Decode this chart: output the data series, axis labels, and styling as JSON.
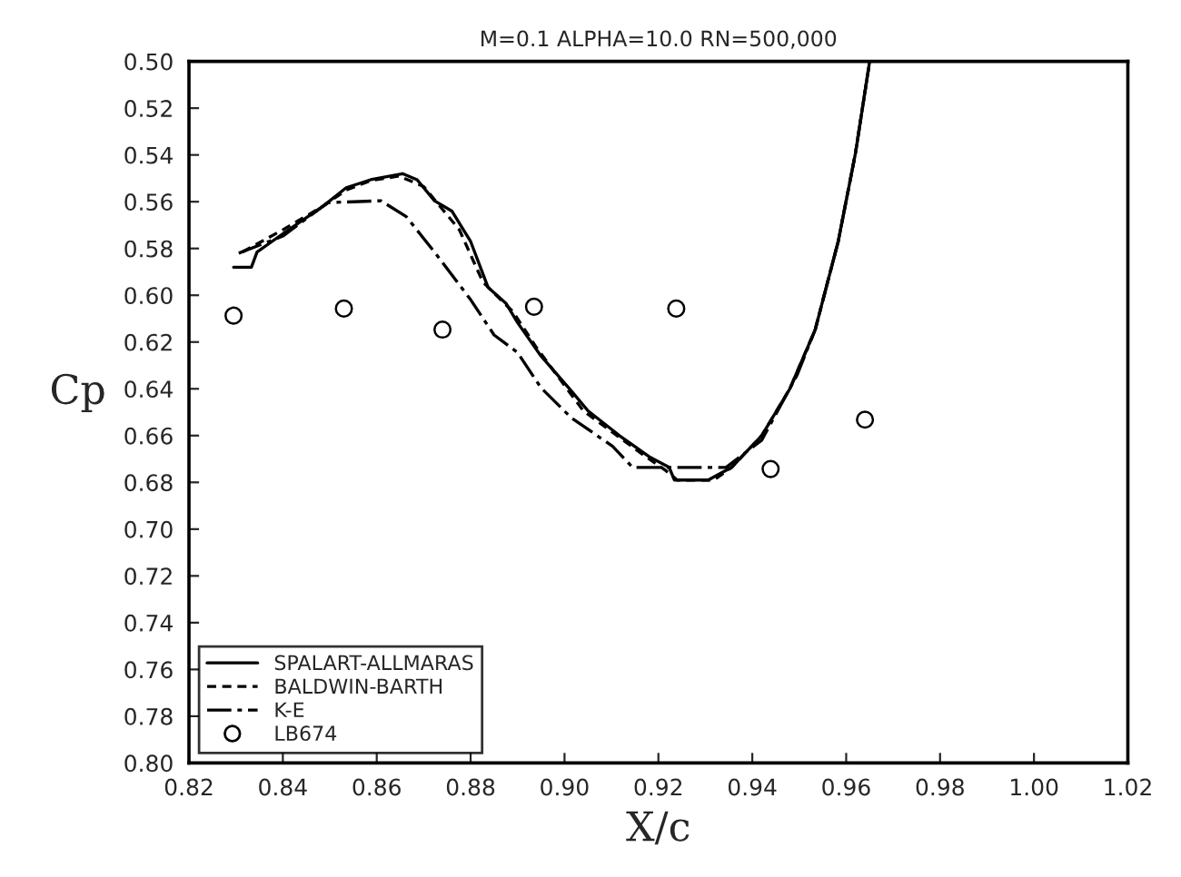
{
  "chart_data": {
    "type": "line",
    "title": "M=0.1 ALPHA=10.0 RN=500,000",
    "xlabel": "X/c",
    "ylabel": "Cp",
    "xlim": [
      0.82,
      1.02
    ],
    "ylim": [
      0.8,
      0.5
    ],
    "xticks": [
      0.82,
      0.84,
      0.86,
      0.88,
      {
        "value": 0.9,
        "label": "0.90"
      },
      0.92,
      0.94,
      0.96,
      0.98,
      {
        "value": 1.0,
        "label": "1.00"
      },
      1.02
    ],
    "yticks": [
      {
        "value": 0.5,
        "label": "0.50"
      },
      0.52,
      0.54,
      0.56,
      0.58,
      {
        "value": 0.6,
        "label": "0.60"
      },
      0.62,
      0.64,
      0.66,
      0.68,
      {
        "value": 0.7,
        "label": "0.70"
      },
      0.72,
      0.74,
      0.76,
      0.78,
      {
        "value": 0.8,
        "label": "0.80"
      }
    ],
    "grid": false,
    "legend": "bottom left",
    "series": [
      {
        "name": "SPALART-ALLMARAS",
        "line_style": "solid",
        "color": "#000000",
        "x": [
          0.8295,
          0.8333,
          0.8345,
          0.8398,
          0.8485,
          0.8535,
          0.8587,
          0.8655,
          0.8686,
          0.8723,
          0.876,
          0.88,
          0.8837,
          0.8875,
          0.89,
          0.895,
          0.9015,
          0.905,
          0.9117,
          0.918,
          0.9223,
          0.9234,
          0.9306,
          0.9356,
          0.942,
          0.948,
          0.9534,
          0.9583,
          0.962,
          0.965
        ],
        "values": [
          0.588,
          0.588,
          0.5815,
          0.574,
          0.562,
          0.554,
          0.5506,
          0.548,
          0.5506,
          0.5596,
          0.564,
          0.577,
          0.5966,
          0.6034,
          0.6117,
          0.626,
          0.641,
          0.6494,
          0.66,
          0.669,
          0.6736,
          0.679,
          0.679,
          0.6736,
          0.66,
          0.64,
          0.6147,
          0.577,
          0.539,
          0.5
        ]
      },
      {
        "name": "BALDWIN-BARTH",
        "line_style": "dashed",
        "color": "#000000",
        "x": [
          0.8314,
          0.84,
          0.8485,
          0.8535,
          0.8587,
          0.8647,
          0.87,
          0.8776,
          0.8826,
          0.889,
          0.8939,
          0.904,
          0.9166,
          0.9216,
          0.924,
          0.9318,
          0.9356,
          0.942,
          0.948,
          0.9534,
          0.9583,
          0.962,
          0.965
        ],
        "values": [
          0.5815,
          0.572,
          0.562,
          0.555,
          0.551,
          0.549,
          0.5535,
          0.572,
          0.5943,
          0.607,
          0.622,
          0.6494,
          0.668,
          0.675,
          0.679,
          0.679,
          0.6736,
          0.66,
          0.64,
          0.6147,
          0.577,
          0.539,
          0.5
        ]
      },
      {
        "name": "K-E",
        "line_style": "dashdot",
        "color": "#000000",
        "x": [
          0.8306,
          0.84,
          0.8496,
          0.8609,
          0.8663,
          0.8723,
          0.88,
          0.885,
          0.89,
          0.895,
          0.9015,
          0.9102,
          0.9145,
          0.9344,
          0.942,
          0.9495,
          0.9534,
          0.9583,
          0.962,
          0.965
        ],
        "values": [
          0.582,
          0.5747,
          0.5604,
          0.5596,
          0.5664,
          0.5815,
          0.6019,
          0.617,
          0.6245,
          0.6396,
          0.6525,
          0.6645,
          0.6736,
          0.6736,
          0.662,
          0.6343,
          0.6147,
          0.577,
          0.539,
          0.5
        ]
      },
      {
        "name": "LB674",
        "type": "scatter",
        "marker": "circle",
        "color": "#000000",
        "x": [
          0.8295,
          0.853,
          0.874,
          0.8935,
          0.9238,
          0.9439,
          0.964
        ],
        "values": [
          0.6087,
          0.6057,
          0.6147,
          0.6049,
          0.6057,
          0.6743,
          0.6532
        ]
      }
    ]
  }
}
